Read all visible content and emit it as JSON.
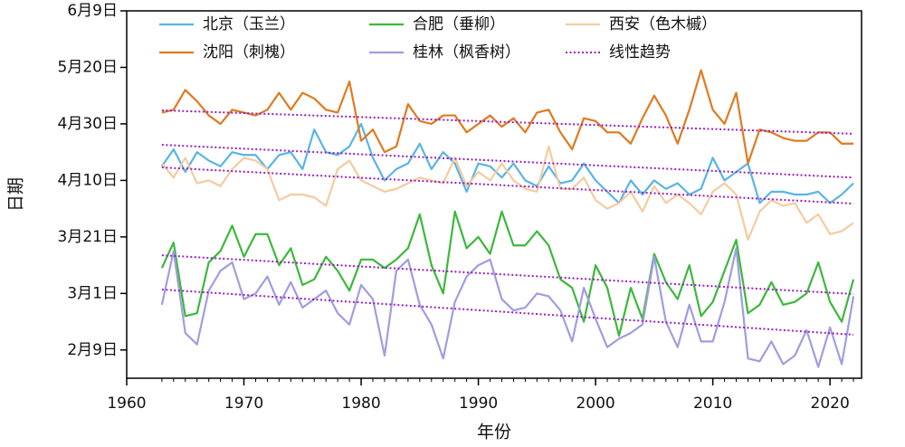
{
  "chart_data": {
    "type": "line",
    "xlabel": "年份",
    "ylabel": "日期",
    "x": [
      1963,
      1964,
      1965,
      1966,
      1967,
      1968,
      1969,
      1970,
      1971,
      1972,
      1973,
      1974,
      1975,
      1976,
      1977,
      1978,
      1979,
      1980,
      1981,
      1982,
      1983,
      1984,
      1985,
      1986,
      1987,
      1988,
      1989,
      1990,
      1991,
      1992,
      1993,
      1994,
      1995,
      1996,
      1997,
      1998,
      1999,
      2000,
      2001,
      2002,
      2003,
      2004,
      2005,
      2006,
      2007,
      2008,
      2009,
      2010,
      2011,
      2012,
      2013,
      2014,
      2015,
      2016,
      2017,
      2018,
      2019,
      2020,
      2021,
      2022
    ],
    "xlim": [
      1960,
      2023
    ],
    "xticks": [
      1960,
      1970,
      1980,
      1990,
      2000,
      2010,
      2020
    ],
    "ylim": [
      30,
      160
    ],
    "yticks": [
      {
        "value": 40,
        "label": "2月9日"
      },
      {
        "value": 60,
        "label": "3月1日"
      },
      {
        "value": 80,
        "label": "3月21日"
      },
      {
        "value": 100,
        "label": "4月10日"
      },
      {
        "value": 120,
        "label": "4月30日"
      },
      {
        "value": 140,
        "label": "5月20日"
      },
      {
        "value": 160,
        "label": "6月9日"
      }
    ],
    "series": [
      {
        "name": "北京（玉兰）",
        "color": "#5ab4e5",
        "values": [
          105,
          111,
          103,
          110,
          107,
          105,
          110,
          109,
          109,
          104,
          109,
          110,
          104,
          118,
          110,
          109,
          112,
          120,
          108,
          100,
          104,
          106,
          113,
          104,
          110,
          106,
          96,
          106,
          105,
          101,
          106,
          100,
          98,
          105,
          99,
          100,
          106,
          100,
          96,
          92,
          100,
          95,
          100,
          97,
          99,
          95,
          97,
          108,
          100,
          103,
          106,
          92,
          96,
          96,
          95,
          95,
          96,
          92,
          95,
          99
        ]
      },
      {
        "name": "合肥（垂柳）",
        "color": "#3cb83c",
        "values": [
          69,
          78,
          52,
          53,
          71,
          75,
          84,
          73,
          81,
          81,
          70,
          76,
          63,
          65,
          73,
          68,
          61,
          72,
          72,
          69,
          72,
          76,
          88,
          70,
          60,
          89,
          76,
          80,
          74,
          89,
          77,
          77,
          82,
          77,
          65,
          62,
          50,
          70,
          62,
          45,
          62,
          51,
          74,
          64,
          58,
          70,
          52,
          57,
          68,
          79,
          53,
          56,
          64,
          56,
          57,
          60,
          71,
          57,
          50,
          65
        ]
      },
      {
        "name": "西安（色木槭）",
        "color": "#f5cba0",
        "values": [
          106,
          101,
          108,
          99,
          100,
          98,
          104,
          108,
          107,
          104,
          93,
          95,
          95,
          94,
          91,
          104,
          107,
          100,
          98,
          96,
          97,
          99,
          101,
          100,
          99,
          108,
          98,
          103,
          100,
          106,
          100,
          97,
          96,
          112,
          97,
          97,
          101,
          93,
          90,
          92,
          96,
          89,
          98,
          92,
          95,
          92,
          88,
          96,
          99,
          95,
          79,
          89,
          93,
          91,
          92,
          85,
          88,
          81,
          82,
          85
        ]
      },
      {
        "name": "沈阳（刺槐）",
        "color": "#e07a1f",
        "values": [
          124,
          125,
          132,
          128,
          123,
          120,
          125,
          124,
          123,
          125,
          131,
          125,
          131,
          129,
          125,
          124,
          135,
          114,
          118,
          110,
          112,
          127,
          121,
          120,
          123,
          123,
          117,
          120,
          123,
          119,
          122,
          117,
          124,
          125,
          117,
          111,
          122,
          121,
          117,
          117,
          113,
          122,
          130,
          123,
          113,
          125,
          139,
          125,
          120,
          131,
          106,
          118,
          117,
          115,
          114,
          114,
          117,
          117,
          113,
          113
        ]
      },
      {
        "name": "桂林（枫香树）",
        "color": "#a09de0",
        "values": [
          56,
          75,
          46,
          42,
          61,
          68,
          71,
          58,
          60,
          66,
          56,
          64,
          55,
          58,
          61,
          53,
          49,
          63,
          58,
          38,
          68,
          72,
          56,
          49,
          37,
          57,
          66,
          70,
          72,
          58,
          54,
          55,
          60,
          59,
          54,
          43,
          62,
          51,
          41,
          44,
          46,
          49,
          73,
          50,
          41,
          56,
          43,
          43,
          57,
          76,
          37,
          36,
          43,
          35,
          38,
          47,
          34,
          48,
          35,
          59
        ]
      }
    ],
    "trend": {
      "name": "线性趋势",
      "color": "#9b1fc0",
      "x": [
        1963,
        2022
      ],
      "values": [
        [
          112.6,
          101
        ],
        [
          73.5,
          59.8
        ],
        [
          104.6,
          91.8
        ],
        [
          124.8,
          116.5
        ],
        [
          61.4,
          45.4
        ]
      ]
    }
  }
}
